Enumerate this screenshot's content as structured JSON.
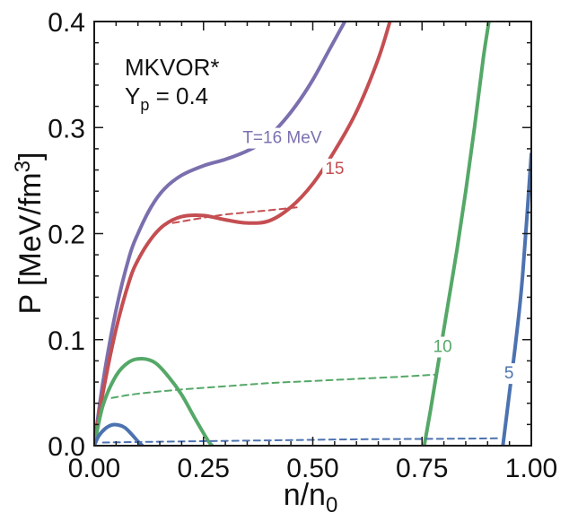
{
  "chart_data": {
    "type": "line",
    "title": "",
    "xlabel": {
      "base": "n/n",
      "sub": "0"
    },
    "ylabel": {
      "base": "P [MeV/fm",
      "sup": "3",
      "end": "]"
    },
    "xlim": [
      0.0,
      1.0
    ],
    "ylim": [
      0.0,
      0.4
    ],
    "xticks": [
      {
        "value": 0.0,
        "label": "0.00"
      },
      {
        "value": 0.25,
        "label": "0.25"
      },
      {
        "value": 0.5,
        "label": "0.50"
      },
      {
        "value": 0.75,
        "label": "0.75"
      },
      {
        "value": 1.0,
        "label": "1.00"
      }
    ],
    "yticks": [
      {
        "value": 0.0,
        "label": "0.0"
      },
      {
        "value": 0.1,
        "label": "0.1"
      },
      {
        "value": 0.2,
        "label": "0.2"
      },
      {
        "value": 0.3,
        "label": "0.3"
      },
      {
        "value": 0.4,
        "label": "0.4"
      }
    ],
    "annotation": {
      "model": "MKVOR*",
      "yp_base": "Y",
      "yp_sub": "p",
      "yp_value": " = 0.4"
    },
    "series": [
      {
        "name": "T=16 MeV",
        "label": "T=16 MeV",
        "color": "#7b6fae",
        "x": [
          0.0,
          0.02,
          0.05,
          0.08,
          0.1,
          0.13,
          0.16,
          0.2,
          0.25,
          0.3,
          0.35,
          0.38,
          0.42,
          0.46,
          0.5,
          0.54,
          0.58
        ],
        "y": [
          0.0,
          0.06,
          0.128,
          0.178,
          0.2,
          0.225,
          0.242,
          0.255,
          0.264,
          0.27,
          0.278,
          0.285,
          0.3,
          0.32,
          0.345,
          0.375,
          0.405
        ]
      },
      {
        "name": "T=15 MeV",
        "label": "15",
        "color": "#c44e52",
        "x": [
          0.0,
          0.02,
          0.05,
          0.08,
          0.1,
          0.13,
          0.16,
          0.2,
          0.25,
          0.3,
          0.35,
          0.4,
          0.45,
          0.5,
          0.55,
          0.6,
          0.65,
          0.68
        ],
        "y": [
          0.0,
          0.05,
          0.11,
          0.155,
          0.175,
          0.195,
          0.208,
          0.216,
          0.217,
          0.213,
          0.21,
          0.212,
          0.225,
          0.247,
          0.278,
          0.315,
          0.365,
          0.405
        ]
      },
      {
        "name": "T=15 MeV Maxwell",
        "label": "",
        "color": "#c44e52",
        "dashed": true,
        "x": [
          0.18,
          0.25,
          0.3,
          0.35,
          0.4,
          0.47
        ],
        "y": [
          0.21,
          0.215,
          0.218,
          0.22,
          0.222,
          0.225
        ]
      },
      {
        "name": "T=10 MeV",
        "label": "10",
        "color": "#55a868",
        "x": [
          0.0,
          0.02,
          0.05,
          0.08,
          0.11,
          0.14,
          0.17,
          0.2,
          0.23,
          0.26,
          0.27
        ],
        "y": [
          0.0,
          0.038,
          0.066,
          0.079,
          0.082,
          0.078,
          0.065,
          0.048,
          0.026,
          0.005,
          0.0
        ]
      },
      {
        "name": "T=10 MeV high",
        "label": "",
        "color": "#55a868",
        "x": [
          0.755,
          0.77,
          0.79,
          0.81,
          0.83,
          0.85,
          0.87,
          0.89,
          0.905
        ],
        "y": [
          0.0,
          0.035,
          0.085,
          0.135,
          0.185,
          0.24,
          0.3,
          0.365,
          0.405
        ]
      },
      {
        "name": "T=10 MeV Maxwell",
        "label": "",
        "color": "#55a868",
        "dashed": true,
        "x": [
          0.04,
          0.1,
          0.2,
          0.3,
          0.4,
          0.5,
          0.6,
          0.7,
          0.78
        ],
        "y": [
          0.045,
          0.049,
          0.053,
          0.056,
          0.059,
          0.061,
          0.063,
          0.065,
          0.067
        ]
      },
      {
        "name": "T=5 MeV",
        "label": "5",
        "color": "#4c72b0",
        "x": [
          0.0,
          0.01,
          0.025,
          0.04,
          0.055,
          0.07,
          0.085,
          0.1,
          0.11
        ],
        "y": [
          0.0,
          0.009,
          0.016,
          0.0195,
          0.0195,
          0.017,
          0.011,
          0.004,
          0.0
        ]
      },
      {
        "name": "T=5 MeV high",
        "label": "",
        "color": "#4c72b0",
        "x": [
          0.935,
          0.95,
          0.965,
          0.98,
          1.0
        ],
        "y": [
          0.0,
          0.05,
          0.1,
          0.16,
          0.275
        ]
      },
      {
        "name": "T=5 MeV Maxwell",
        "label": "",
        "color": "#4c72b0",
        "dashed": true,
        "x": [
          0.02,
          0.2,
          0.4,
          0.6,
          0.8,
          0.93
        ],
        "y": [
          0.003,
          0.004,
          0.005,
          0.006,
          0.0065,
          0.007
        ]
      }
    ],
    "curve_labels": [
      {
        "text": "T=16 MeV",
        "x": 0.43,
        "y": 0.29,
        "color": "#7b6fae",
        "series": "T=16 MeV"
      },
      {
        "text": "15",
        "x": 0.55,
        "y": 0.261,
        "color": "#c44e52",
        "series": "T=15 MeV"
      },
      {
        "text": "10",
        "x": 0.797,
        "y": 0.093,
        "color": "#55a868",
        "series": "T=10 MeV"
      },
      {
        "text": "5",
        "x": 0.949,
        "y": 0.068,
        "color": "#4c72b0",
        "series": "T=5 MeV"
      }
    ]
  }
}
